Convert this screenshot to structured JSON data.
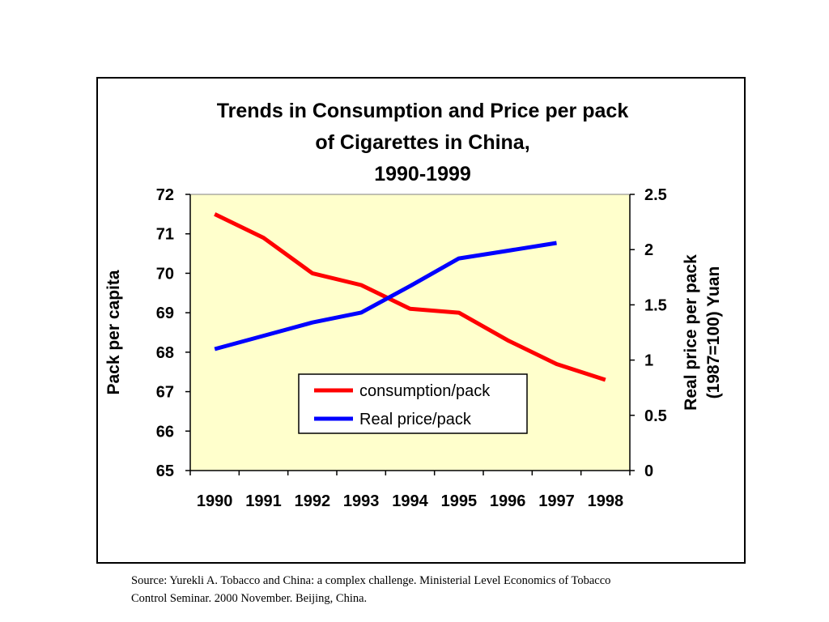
{
  "chart_data": {
    "type": "line",
    "title_lines": [
      "Trends in Consumption and Price per pack",
      "of Cigarettes in China,",
      "1990-1999"
    ],
    "categories": [
      "1990",
      "1991",
      "1992",
      "1993",
      "1994",
      "1995",
      "1996",
      "1997",
      "1998"
    ],
    "y_left": {
      "label": "Pack per capita",
      "range": [
        65,
        72
      ],
      "ticks": [
        "65",
        "66",
        "67",
        "68",
        "69",
        "70",
        "71",
        "72"
      ]
    },
    "y_right": {
      "label_lines": [
        "Real price per pack",
        "(1987=100) Yuan"
      ],
      "range": [
        0,
        2.5
      ],
      "ticks": [
        "0",
        "0.5",
        "1",
        "1.5",
        "2",
        "2.5"
      ]
    },
    "series": [
      {
        "name": "consumption/pack",
        "axis": "left",
        "color": "#ff0000",
        "values": [
          71.5,
          70.9,
          70.0,
          69.7,
          69.1,
          69.0,
          68.3,
          67.7,
          67.3
        ]
      },
      {
        "name": "Real price/pack",
        "axis": "right",
        "color": "#0000ff",
        "values": [
          1.1,
          1.22,
          1.34,
          1.43,
          1.67,
          1.92,
          1.99,
          2.06,
          null
        ]
      }
    ],
    "plot_background": "#ffffcc",
    "grid": false,
    "legend_position": "lower-center"
  },
  "source_note": {
    "lines": [
      "Source:  Yurekli A. Tobacco and China: a complex challenge. Ministerial Level Economics of Tobacco",
      "Control Seminar. 2000 November. Beijing, China."
    ]
  }
}
